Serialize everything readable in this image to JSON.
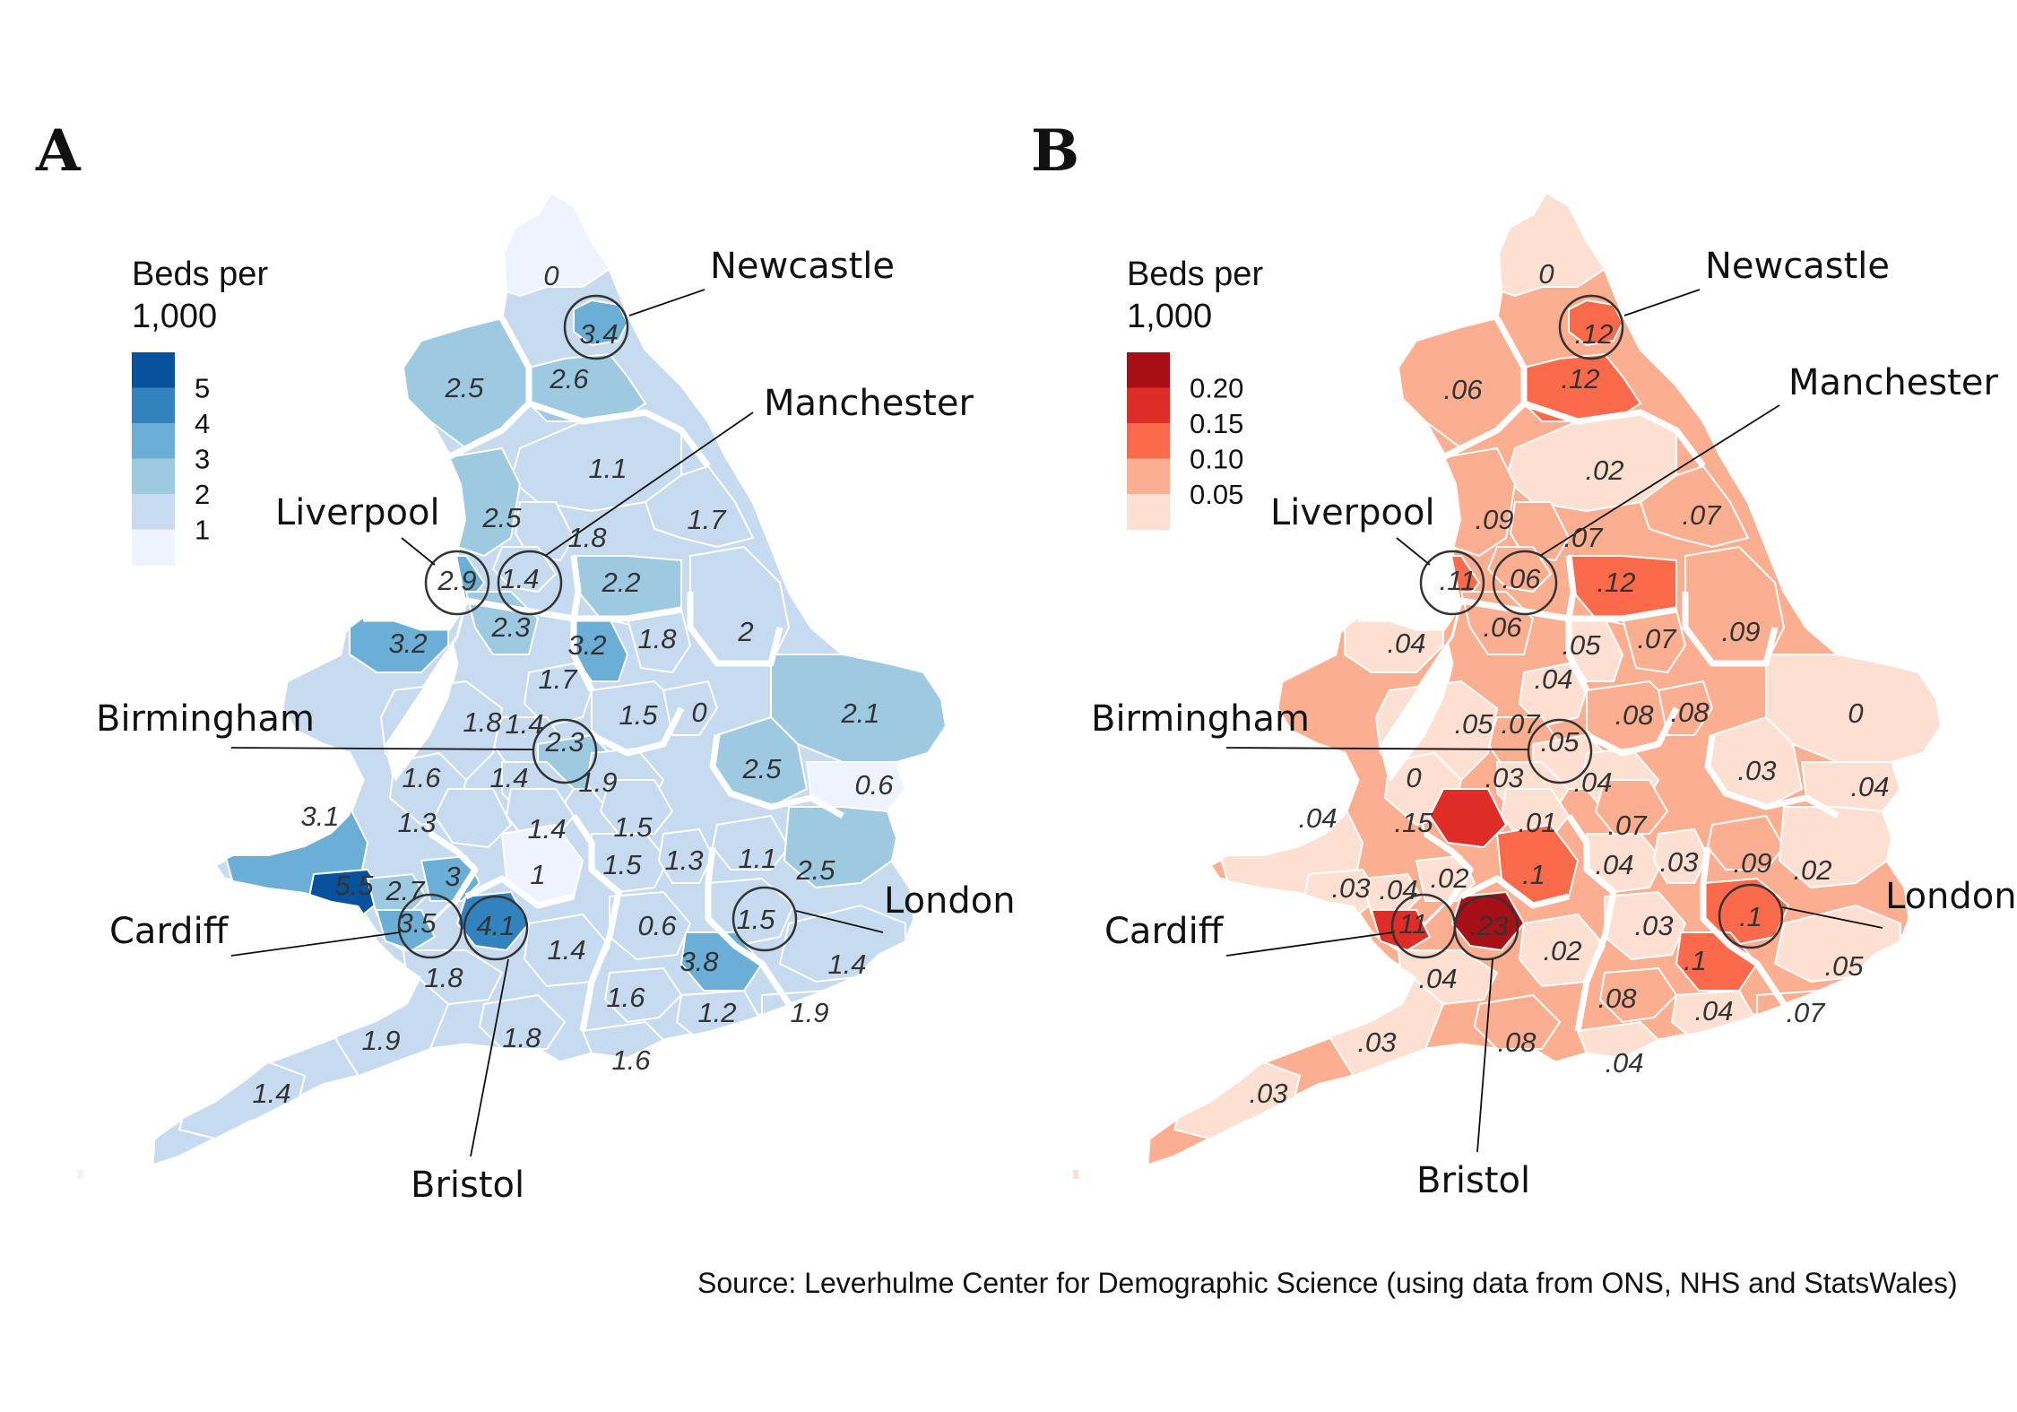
{
  "source": "Source: Leverhulme Center for Demographic Science (using data from ONS, NHS and StatsWales)",
  "panels": [
    {
      "letter": "A",
      "legend": {
        "title": [
          "Beds per",
          "1,000"
        ],
        "ticks": [
          "5",
          "4",
          "3",
          "2",
          "1"
        ],
        "colors": [
          "#08519c",
          "#3182bd",
          "#6baed6",
          "#9ecae1",
          "#c6dbef",
          "#eff3ff"
        ]
      },
      "cities": [
        "Newcastle",
        "Manchester",
        "Liverpool",
        "Birmingham",
        "Cardiff",
        "Bristol",
        "London"
      ],
      "values": [
        "0",
        "3.4",
        "2.6",
        "2.5",
        "1.1",
        "1.7",
        "2.5",
        "1.8",
        "2.9",
        "1.4",
        "2.2",
        "2.3",
        "3.2",
        "3.2",
        "1.8",
        "2",
        "1.7",
        "1.4",
        "1.8",
        "1.5",
        "0",
        "2.1",
        "2.3",
        "1.6",
        "1.4",
        "1.9",
        "2.5",
        "0.6",
        "1.3",
        "1.4",
        "1.5",
        "3.1",
        "1",
        "1.5",
        "1.3",
        "1.1",
        "2.5",
        "5.5",
        "2.7",
        "3",
        "3.5",
        "4.1",
        "1.5",
        "1.4",
        "0.6",
        "3.8",
        "1.4",
        "1.8",
        "1.6",
        "1.2",
        "1.9",
        "1.9",
        "1.8",
        "1.6",
        "1.4"
      ]
    },
    {
      "letter": "B",
      "legend": {
        "title": [
          "Beds per",
          "1,000"
        ],
        "ticks": [
          "0.20",
          "0.15",
          "0.10",
          "0.05"
        ],
        "colors": [
          "#a50f15",
          "#de2d26",
          "#fb6a4a",
          "#fcae91",
          "#fde0d2"
        ]
      },
      "cities": [
        "Newcastle",
        "Manchester",
        "Liverpool",
        "Birmingham",
        "Cardiff",
        "Bristol",
        "London"
      ],
      "values": [
        "0",
        ".12",
        ".12",
        ".06",
        ".02",
        ".07",
        ".09",
        ".07",
        ".11",
        ".06",
        ".12",
        ".06",
        ".04",
        ".05",
        ".07",
        ".09",
        ".04",
        ".07",
        ".05",
        ".08",
        ".08",
        "0",
        ".05",
        "0",
        ".03",
        ".04",
        ".03",
        ".04",
        ".15",
        ".01",
        ".07",
        ".04",
        ".1",
        ".04",
        ".03",
        ".09",
        ".02",
        ".03",
        ".04",
        ".02",
        ".11",
        ".23",
        ".1",
        ".02",
        ".03",
        ".1",
        ".05",
        ".04",
        ".08",
        ".04",
        ".07",
        ".03",
        ".08",
        ".04",
        ".03"
      ]
    }
  ]
}
